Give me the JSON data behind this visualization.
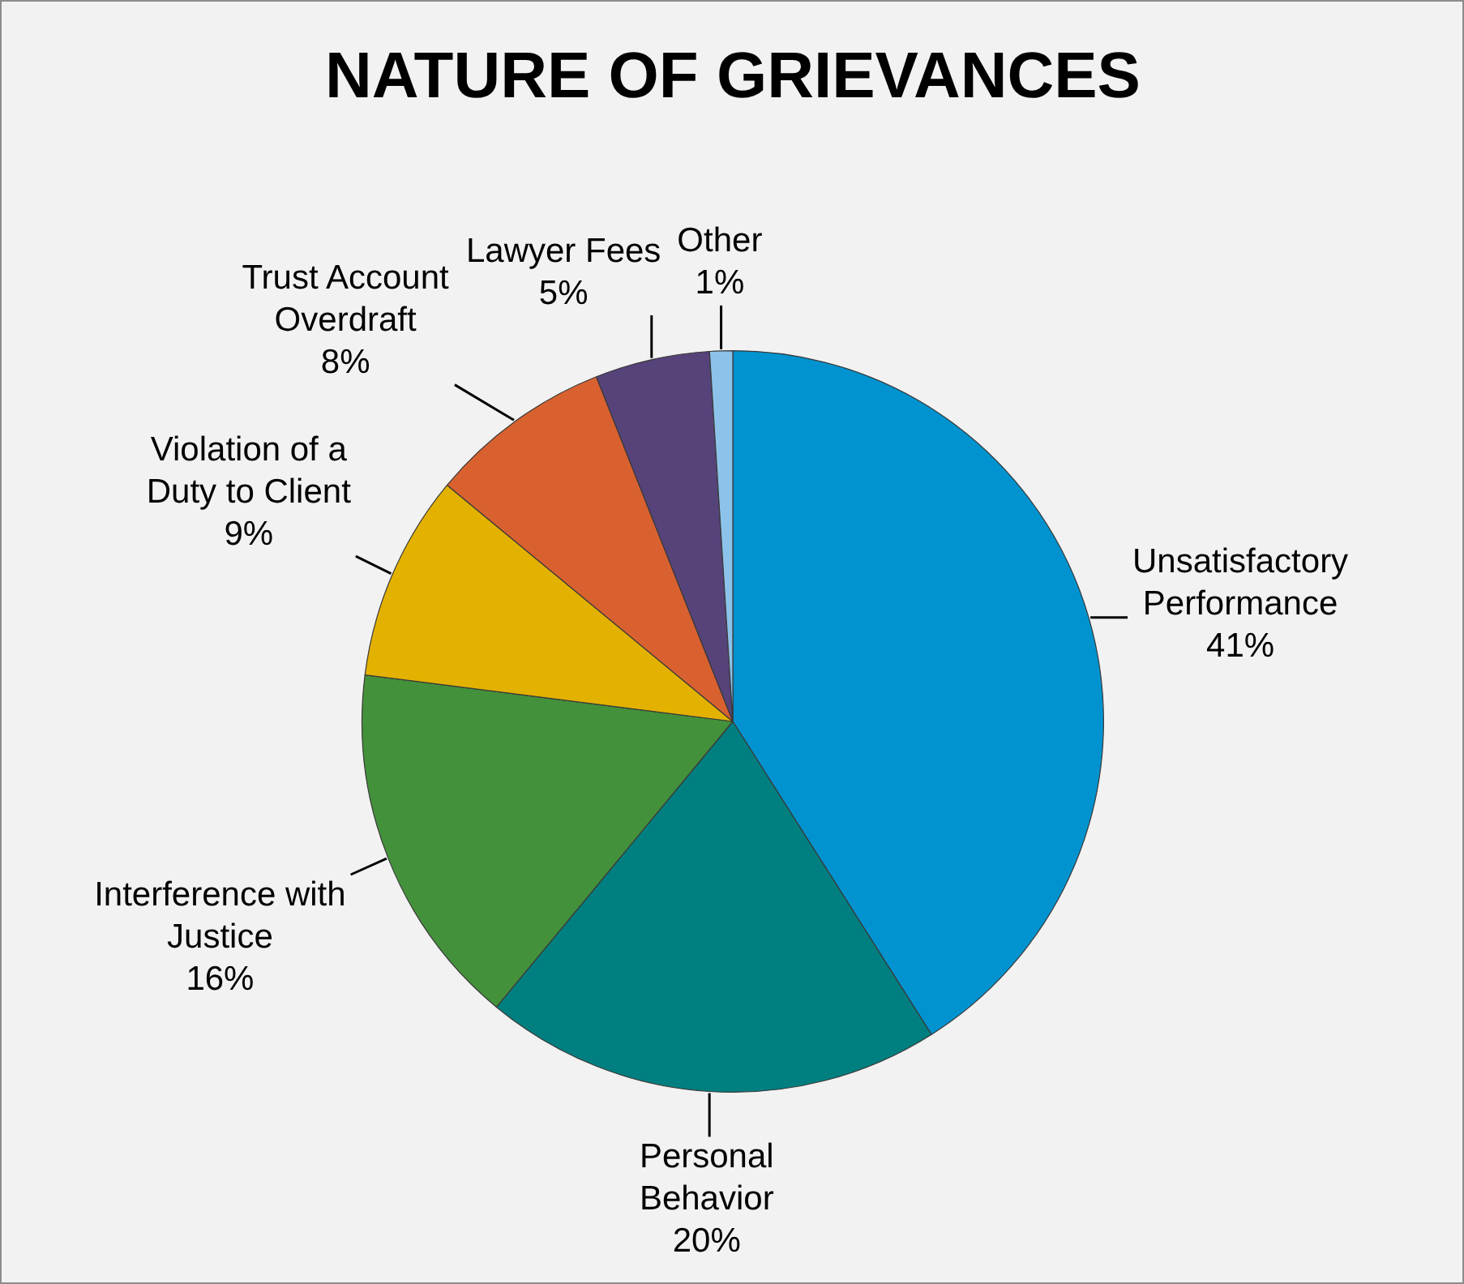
{
  "chart_data": {
    "type": "pie",
    "title": "NATURE OF GRIEVANCES",
    "categories": [
      "Unsatisfactory Performance",
      "Personal Behavior",
      "Interference with Justice",
      "Violation of a Duty to Client",
      "Trust Account Overdraft",
      "Lawyer Fees",
      "Other"
    ],
    "values": [
      41,
      20,
      16,
      9,
      8,
      5,
      1
    ],
    "value_labels": [
      "41%",
      "20%",
      "16%",
      "9%",
      "8%",
      "5%",
      "1%"
    ],
    "colors": [
      "#0093d0",
      "#007f80",
      "#43913b",
      "#e3b100",
      "#d96130",
      "#56437a",
      "#8dc3ea"
    ],
    "legend": false
  }
}
